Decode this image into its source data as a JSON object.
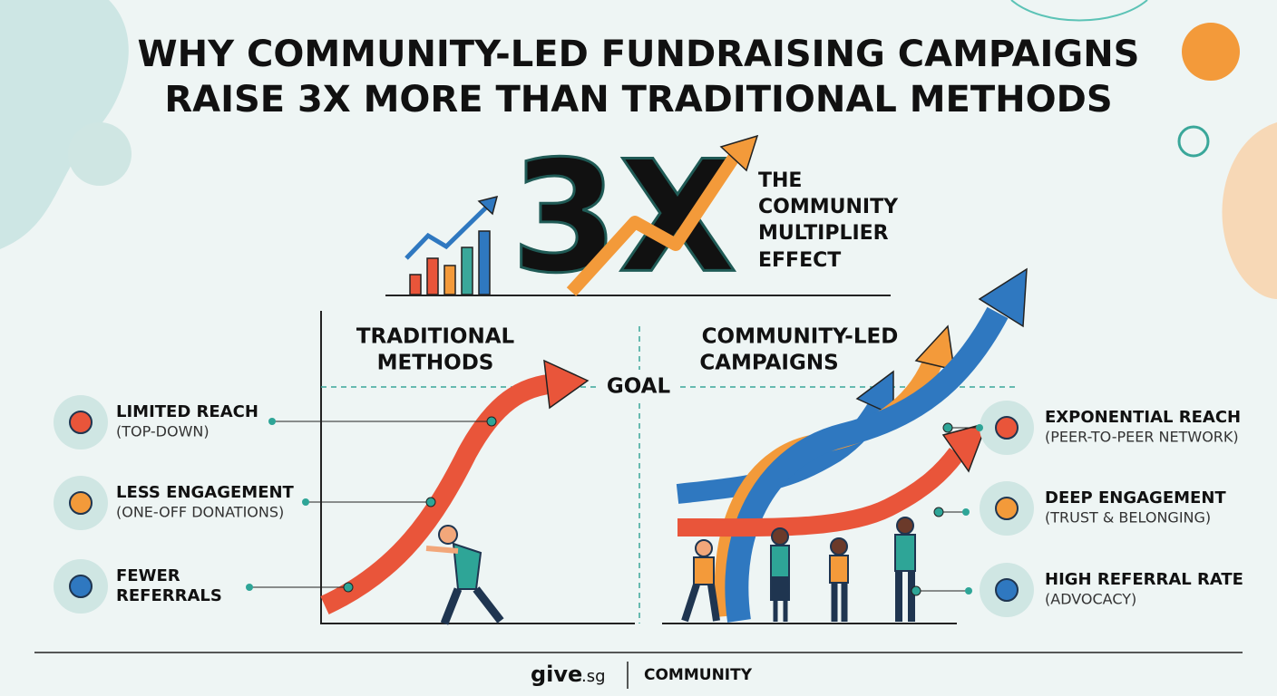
{
  "header": {
    "title_lines": [
      "WHY COMMUNITY-LED FUNDRAISING CAMPAIGNS",
      "RAISE 3X MORE THAN TRADITIONAL METHODS"
    ]
  },
  "hero": {
    "big_text": "3X",
    "caption_lines": [
      "THE",
      "COMMUNITY",
      "MULTIPLIER",
      "EFFECT"
    ]
  },
  "comparison": {
    "goal": "GOAL",
    "left": {
      "heading_lines": [
        "TRADITIONAL",
        "METHODS"
      ],
      "items": [
        {
          "title_lines": [
            "LIMITED REACH"
          ],
          "subtitle": "(TOP-DOWN)"
        },
        {
          "title_lines": [
            "LESS ENGAGEMENT"
          ],
          "subtitle": "(ONE-OFF DONATIONS)"
        },
        {
          "title_lines": [
            "FEWER",
            "REFERRALS"
          ]
        }
      ]
    },
    "right": {
      "heading_lines": [
        "COMMUNITY-LED",
        "CAMPAIGNS"
      ],
      "items": [
        {
          "title_lines": [
            "EXPONENTIAL REACH"
          ],
          "subtitle": "(PEER-TO-PEER NETWORK)"
        },
        {
          "title_lines": [
            "DEEP ENGAGEMENT"
          ],
          "subtitle": "(TRUST & BELONGING)"
        },
        {
          "title_lines": [
            "HIGH REFERRAL RATE"
          ],
          "subtitle": "(ADVOCACY)"
        }
      ]
    }
  },
  "footer": {
    "brand": "give",
    "brand_suffix": ".sg",
    "tag": "COMMUNITY"
  }
}
